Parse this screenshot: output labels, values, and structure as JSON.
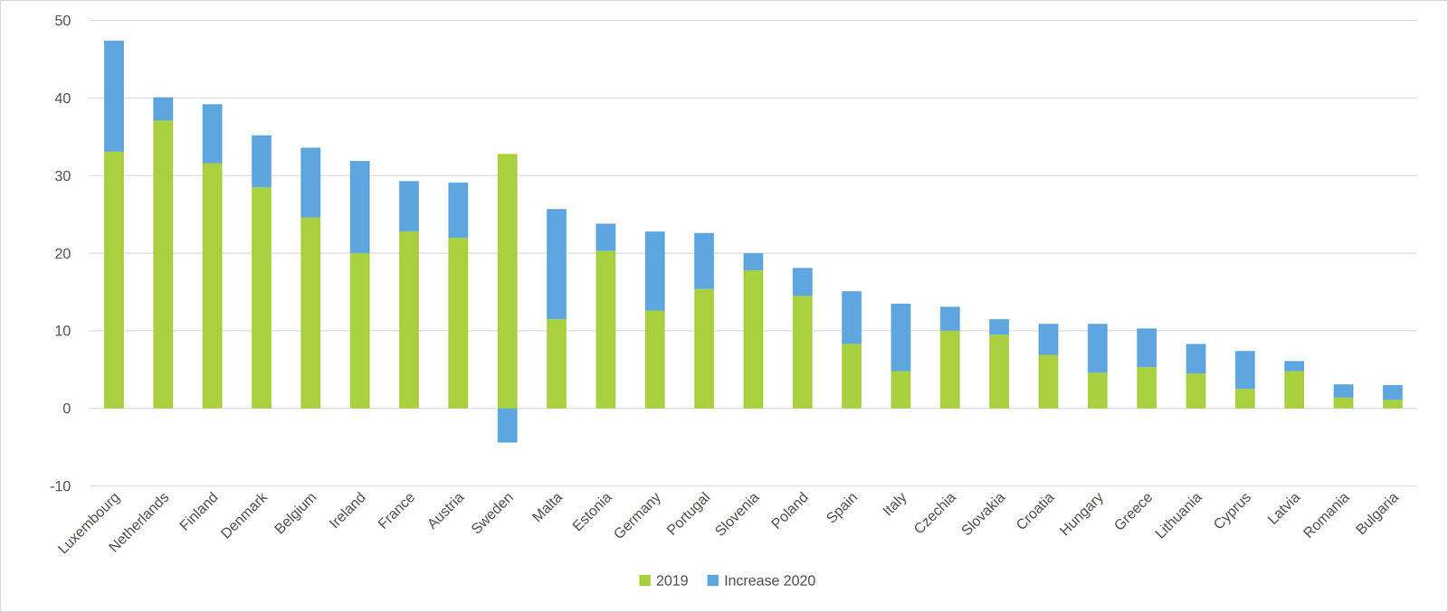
{
  "chart_data": {
    "type": "bar",
    "stacked": true,
    "grid": true,
    "legend": "bottom",
    "categories": [
      "Luxembourg",
      "Netherlands",
      "Finland",
      "Denmark",
      "Belgium",
      "Ireland",
      "France",
      "Austria",
      "Sweden",
      "Malta",
      "Estonia",
      "Germany",
      "Portugal",
      "Slovenia",
      "Poland",
      "Spain",
      "Italy",
      "Czechia",
      "Slovakia",
      "Croatia",
      "Hungary",
      "Greece",
      "Lithuania",
      "Cyprus",
      "Latvia",
      "Romania",
      "Bulgaria"
    ],
    "series": [
      {
        "name": "2019",
        "color": "#a9d03f",
        "values": [
          33.1,
          37.1,
          31.6,
          28.5,
          24.6,
          20.0,
          22.8,
          22.0,
          32.8,
          11.5,
          20.3,
          12.6,
          15.4,
          17.8,
          14.5,
          8.3,
          4.8,
          10.0,
          9.5,
          6.9,
          4.6,
          5.3,
          4.5,
          2.5,
          4.8,
          1.4,
          1.1
        ]
      },
      {
        "name": "Increase 2020",
        "color": "#5ea6e0",
        "values": [
          14.3,
          3.0,
          7.6,
          6.7,
          9.0,
          11.9,
          6.5,
          7.1,
          -4.4,
          14.2,
          3.5,
          10.2,
          7.2,
          2.2,
          3.6,
          6.8,
          8.7,
          3.1,
          2.0,
          4.0,
          6.3,
          5.0,
          3.8,
          4.9,
          1.3,
          1.7,
          1.9
        ]
      }
    ],
    "ylim": [
      -10,
      50
    ],
    "yticks": [
      -10,
      0,
      10,
      20,
      30,
      40,
      50
    ]
  }
}
